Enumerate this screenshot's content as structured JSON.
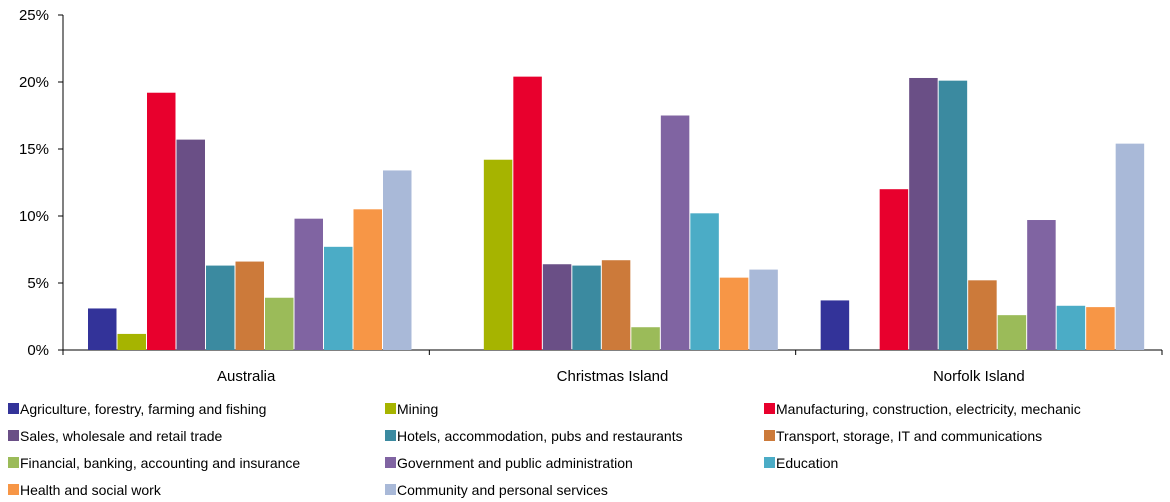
{
  "chart_data": {
    "type": "bar",
    "categories": [
      "Australia",
      "Christmas Island",
      "Norfolk Island"
    ],
    "y_axis": {
      "min": 0,
      "max": 25,
      "ticks": [
        0,
        5,
        10,
        15,
        20,
        25
      ],
      "tick_labels": [
        "0%",
        "5%",
        "10%",
        "15%",
        "20%",
        "25%"
      ],
      "format": "percent"
    },
    "grid": false,
    "legend_position": "bottom",
    "series": [
      {
        "name": "Agriculture, forestry, farming and fishing",
        "color": "#333399",
        "values": [
          3.1,
          0,
          3.7
        ]
      },
      {
        "name": "Mining",
        "color": "#A6B400",
        "values": [
          1.2,
          14.2,
          0
        ]
      },
      {
        "name": "Manufacturing, construction, electricity, mechanic",
        "color": "#E8002D",
        "values": [
          19.2,
          20.4,
          12.0
        ]
      },
      {
        "name": "Sales, wholesale and retail trade",
        "color": "#6A4F86",
        "values": [
          15.7,
          6.4,
          20.3
        ]
      },
      {
        "name": "Hotels, accommodation, pubs and restaurants",
        "color": "#3B8AA0",
        "values": [
          6.3,
          6.3,
          20.1
        ]
      },
      {
        "name": "Transport, storage, IT and communications",
        "color": "#CC7A3A",
        "values": [
          6.6,
          6.7,
          5.2
        ]
      },
      {
        "name": "Financial, banking, accounting and insurance",
        "color": "#9BBB59",
        "values": [
          3.9,
          1.7,
          2.6
        ]
      },
      {
        "name": "Government and public administration",
        "color": "#8064A2",
        "values": [
          9.8,
          17.5,
          9.7
        ]
      },
      {
        "name": "Education",
        "color": "#4BACC6",
        "values": [
          7.7,
          10.2,
          3.3
        ]
      },
      {
        "name": "Health and social work",
        "color": "#F79646",
        "values": [
          10.5,
          5.4,
          3.2
        ]
      },
      {
        "name": "Community and personal services",
        "color": "#A9B9D8",
        "values": [
          13.4,
          6.0,
          15.4
        ]
      }
    ]
  }
}
